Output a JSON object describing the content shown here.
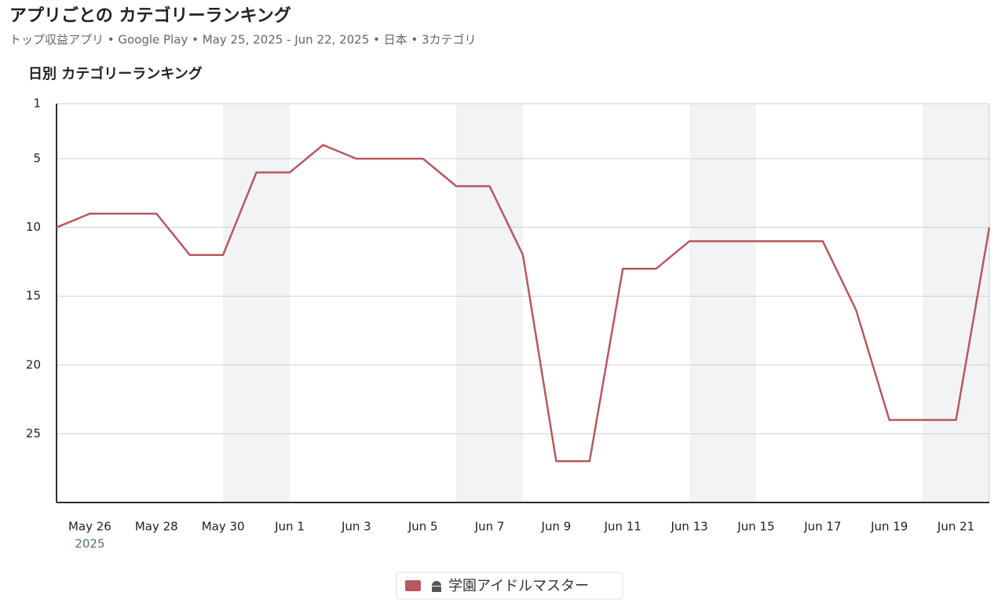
{
  "chart_data": {
    "type": "line",
    "page_title": "アプリごとの カテゴリーランキング",
    "subtitle": "トップ収益アプリ • Google Play • May 25, 2025 - Jun 22, 2025 • 日本 • 3カテゴリ",
    "title": "日別 カテゴリーランキング",
    "categories": [
      null,
      "May 26",
      null,
      "May 28",
      null,
      "May 30",
      null,
      "Jun 1",
      null,
      "Jun 3",
      null,
      "Jun 5",
      null,
      "Jun 7",
      null,
      "Jun 9",
      null,
      "Jun 11",
      null,
      "Jun 13",
      null,
      "Jun 15",
      null,
      "Jun 17",
      null,
      "Jun 19",
      null,
      "Jun 21",
      null
    ],
    "x_year_label": "2025",
    "series": [
      {
        "name": "学園アイドルマスター",
        "color": "#b85760",
        "values": [
          10,
          9,
          9,
          9,
          12,
          12,
          6,
          6,
          4,
          5,
          5,
          5,
          7,
          7,
          12,
          27,
          27,
          13,
          13,
          11,
          11,
          11,
          11,
          11,
          16,
          24,
          24,
          24,
          10
        ]
      }
    ],
    "ylim": [
      1,
      30
    ],
    "yticks": [
      1,
      5,
      10,
      15,
      20,
      25
    ],
    "y_reversed": true,
    "grid": true
  }
}
